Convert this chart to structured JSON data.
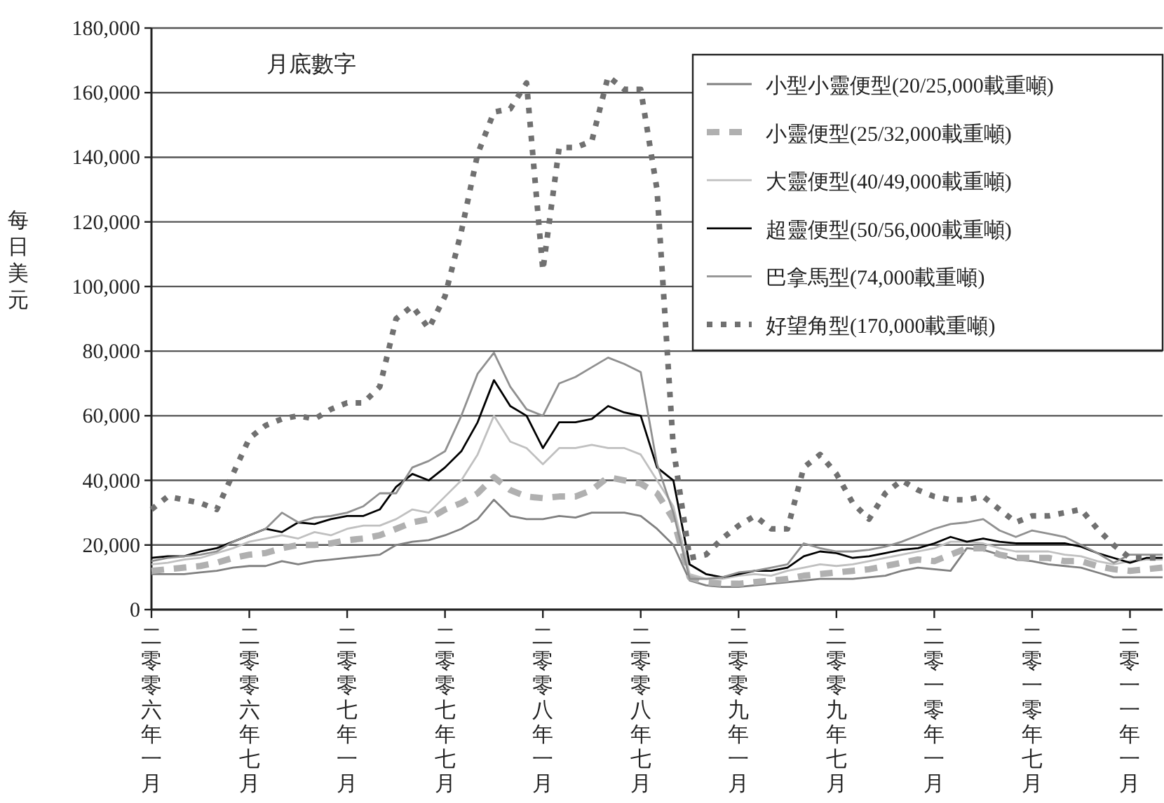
{
  "chart_data": {
    "type": "line",
    "ylabel": "每日美元",
    "annotations": [
      "月底數字"
    ],
    "categories": [
      "二零零六年一月",
      null,
      null,
      null,
      null,
      null,
      "二零零六年七月",
      null,
      null,
      null,
      null,
      null,
      "二零零七年一月",
      null,
      null,
      null,
      null,
      null,
      "二零零七年七月",
      null,
      null,
      null,
      null,
      null,
      "二零零八年一月",
      null,
      null,
      null,
      null,
      null,
      "二零零八年七月",
      null,
      null,
      null,
      null,
      null,
      "二零零九年一月",
      null,
      null,
      null,
      null,
      null,
      "二零零九年七月",
      null,
      null,
      null,
      null,
      null,
      "二零一零年一月",
      null,
      null,
      null,
      null,
      null,
      "二零一零年七月",
      null,
      null,
      null,
      null,
      null,
      "二零一一年一月",
      null,
      null
    ],
    "series": [
      {
        "name": "小型小靈便型(20/25,000載重噸)",
        "color": "#808080",
        "line_style": "solid",
        "values": [
          11000,
          11000,
          11000,
          11500,
          12000,
          13000,
          13500,
          13500,
          15000,
          14000,
          15000,
          15500,
          16000,
          16500,
          17000,
          20000,
          21000,
          21500,
          23000,
          25000,
          28000,
          34000,
          29000,
          28000,
          28000,
          29000,
          28500,
          30000,
          30000,
          30000,
          29000,
          25000,
          20000,
          9000,
          7500,
          7000,
          7000,
          7500,
          8000,
          8500,
          9000,
          9500,
          9500,
          9500,
          10000,
          10500,
          12000,
          13000,
          12500,
          12000,
          19000,
          18500,
          17000,
          15500,
          15000,
          14000,
          13500,
          13000,
          11500,
          10000,
          10000,
          10000,
          10000
        ]
      },
      {
        "name": "小靈便型(25/32,000載重噸)",
        "color": "#b0b0b0",
        "line_style": "dashed",
        "values": [
          12000,
          12500,
          13000,
          13500,
          14500,
          16000,
          17000,
          17500,
          19000,
          20000,
          20000,
          20500,
          21500,
          22000,
          23000,
          25000,
          27000,
          28000,
          31000,
          33000,
          36000,
          41000,
          37000,
          35000,
          34500,
          35000,
          35000,
          37000,
          41000,
          40000,
          39000,
          36000,
          28000,
          10000,
          8500,
          8000,
          8000,
          8500,
          9000,
          9500,
          10500,
          11000,
          11500,
          12000,
          12500,
          13500,
          14500,
          15500,
          15000,
          17000,
          19000,
          19000,
          17000,
          16000,
          16000,
          16000,
          15000,
          15000,
          13500,
          12500,
          12000,
          12500,
          13000
        ]
      },
      {
        "name": "大靈便型(40/49,000載重噸)",
        "color": "#c0c0c0",
        "line_style": "solid",
        "values": [
          14000,
          14500,
          15500,
          16000,
          17500,
          19000,
          21000,
          22000,
          23000,
          22000,
          24000,
          23000,
          25000,
          26000,
          26000,
          28000,
          31000,
          30000,
          35000,
          40000,
          48000,
          60000,
          52000,
          50000,
          45000,
          50000,
          50000,
          51000,
          50000,
          50000,
          48000,
          40000,
          32000,
          11000,
          9500,
          9500,
          10500,
          11000,
          10500,
          12000,
          13000,
          14000,
          13500,
          14000,
          15000,
          16000,
          17000,
          18000,
          19000,
          21000,
          21000,
          20500,
          19000,
          18000,
          18000,
          18000,
          17000,
          16500,
          15000,
          14000,
          15000,
          15500,
          15500
        ]
      },
      {
        "name": "超靈便型(50/56,000載重噸)",
        "color": "#000000",
        "line_style": "solid",
        "values": [
          16000,
          16500,
          16500,
          18000,
          19000,
          21000,
          23000,
          25000,
          24000,
          27000,
          26500,
          28000,
          29000,
          29000,
          31000,
          38000,
          42000,
          40000,
          44000,
          49000,
          58000,
          71000,
          63000,
          60000,
          50000,
          58000,
          58000,
          59000,
          63000,
          61000,
          60000,
          44000,
          40000,
          14000,
          11000,
          10000,
          11000,
          12000,
          12000,
          13000,
          16500,
          18000,
          17500,
          16000,
          16500,
          17500,
          18500,
          19000,
          20500,
          22500,
          21000,
          22000,
          21000,
          20500,
          20500,
          20500,
          20500,
          19500,
          17500,
          16000,
          14500,
          16000,
          16000
        ]
      },
      {
        "name": "巴拿馬型(74,000載重噸)",
        "color": "#909090",
        "line_style": "solid",
        "values": [
          15000,
          16000,
          16500,
          17000,
          18000,
          21000,
          23000,
          25000,
          30000,
          27000,
          28500,
          29000,
          30000,
          32000,
          36000,
          36000,
          44000,
          46000,
          49000,
          60000,
          73000,
          79500,
          69000,
          62000,
          60000,
          70000,
          72000,
          75000,
          78000,
          76000,
          73500,
          45000,
          30000,
          9500,
          9500,
          10000,
          11500,
          12000,
          13000,
          14000,
          20500,
          19000,
          18000,
          18000,
          18500,
          19500,
          21000,
          23000,
          25000,
          26500,
          27000,
          28000,
          24500,
          22500,
          24500,
          23500,
          22500,
          20000,
          17500,
          14500,
          17000,
          17000,
          17000
        ]
      },
      {
        "name": "好望角型(170,000載重噸)",
        "color": "#707070",
        "line_style": "dotted",
        "values": [
          31000,
          35000,
          34000,
          33000,
          31000,
          42000,
          53000,
          57000,
          59000,
          60000,
          59000,
          62000,
          64000,
          64000,
          69000,
          90000,
          94000,
          87000,
          97000,
          117000,
          141000,
          154000,
          155000,
          163000,
          105000,
          143000,
          143000,
          145000,
          165000,
          161000,
          161000,
          130000,
          50000,
          16000,
          17000,
          22000,
          26000,
          29000,
          25000,
          25000,
          44000,
          48000,
          42000,
          33000,
          28000,
          36000,
          40000,
          37000,
          35000,
          34000,
          34000,
          35000,
          31000,
          27000,
          29000,
          29000,
          30000,
          31000,
          25000,
          20000,
          16000,
          16000,
          16000
        ]
      }
    ],
    "ylim": [
      0,
      180000
    ],
    "yticks": [
      0,
      {
        "value": 20000,
        "label": "20,000"
      },
      {
        "value": 40000,
        "label": "40,000"
      },
      {
        "value": 60000,
        "label": "60,000"
      },
      {
        "value": 80000,
        "label": "80,000"
      },
      {
        "value": 100000,
        "label": "100,000"
      },
      {
        "value": 120000,
        "label": "120,000"
      },
      {
        "value": 140000,
        "label": "140,000"
      },
      {
        "value": 160000,
        "label": "160,000"
      },
      {
        "value": 180000,
        "label": "180,000"
      }
    ],
    "grid": "y",
    "legend": "top right"
  }
}
